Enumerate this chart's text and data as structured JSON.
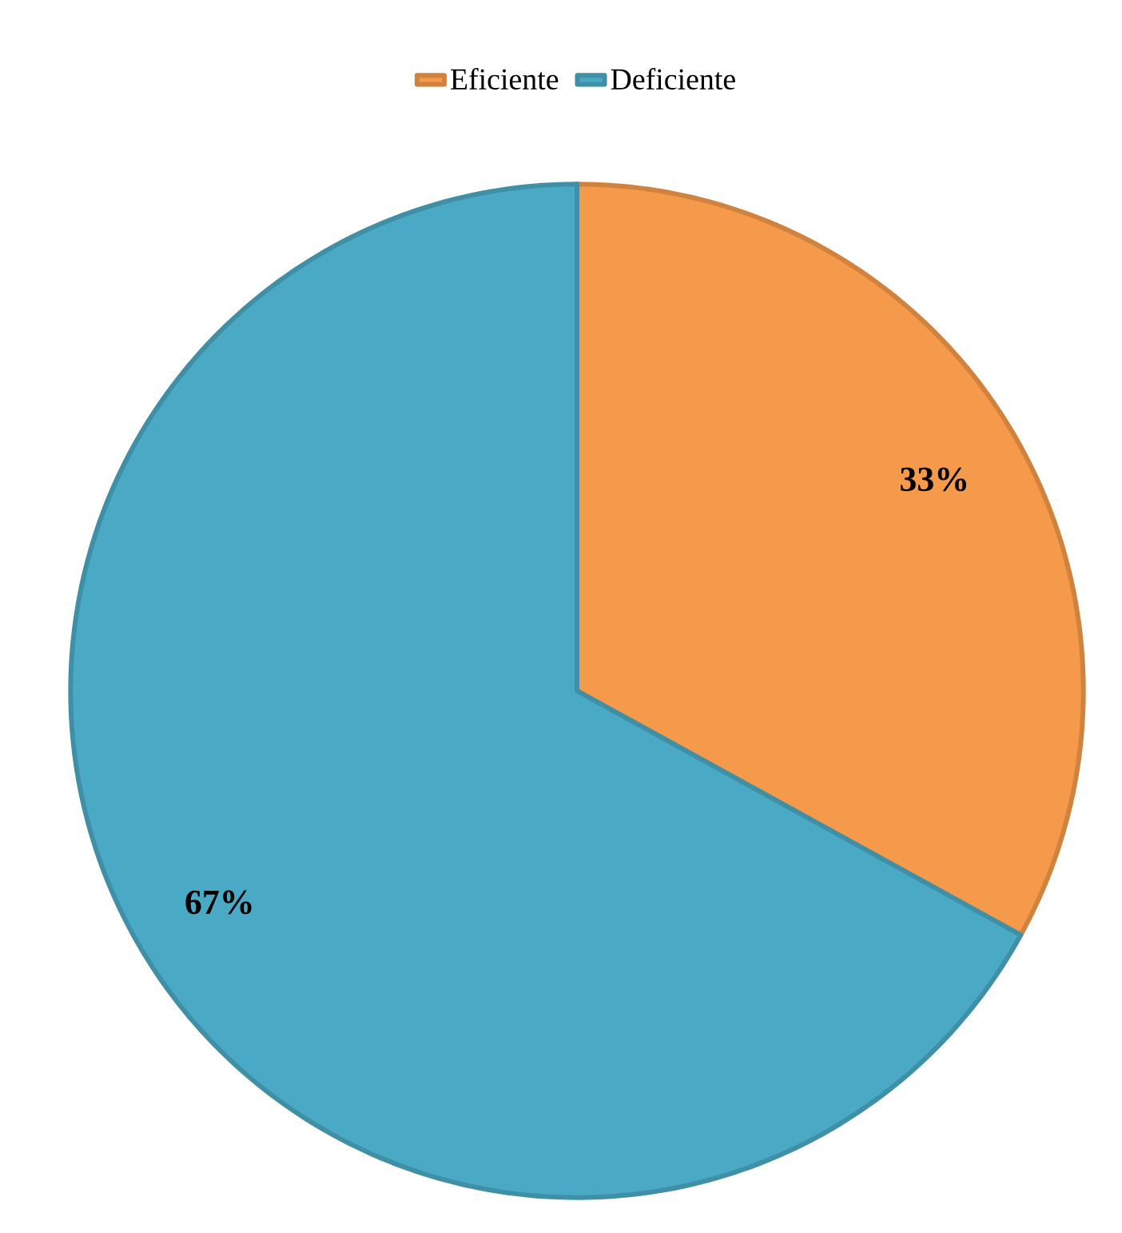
{
  "chart_data": {
    "type": "pie",
    "categories": [
      "Eficiente",
      "Deficiente"
    ],
    "values": [
      33,
      67
    ],
    "colors": [
      "#f59a4a",
      "#4aaac5"
    ],
    "value_labels": [
      "33%",
      "67%"
    ],
    "legend": "top"
  }
}
